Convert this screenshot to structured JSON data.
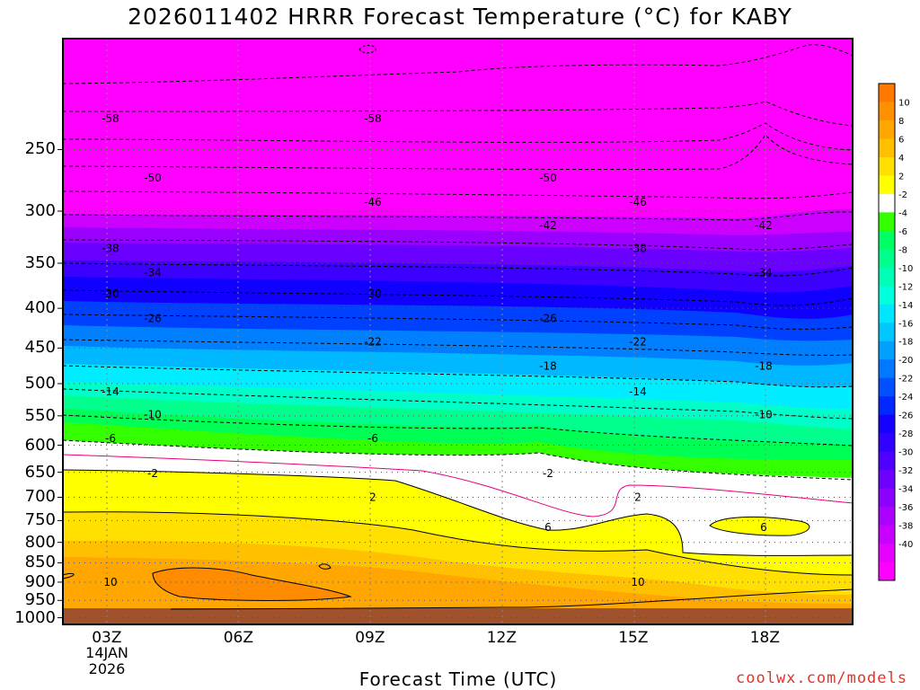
{
  "chart_data": {
    "type": "heatmap",
    "title": "2026011402 HRRR Forecast Temperature (°C) for KABY",
    "xlabel": "Forecast Time (UTC)",
    "ylabel": "",
    "credit": "coolwx.com/models",
    "date_label": [
      "14JAN",
      "2026"
    ],
    "x_ticks": [
      "03Z",
      "06Z",
      "09Z",
      "12Z",
      "15Z",
      "18Z"
    ],
    "y_ticks": [
      250,
      300,
      350,
      400,
      450,
      500,
      550,
      600,
      650,
      700,
      750,
      800,
      850,
      900,
      950,
      1000
    ],
    "xlim_hours": [
      2,
      20
    ],
    "ylim_hpa": [
      1020,
      180
    ],
    "colorbar_ticks": [
      10,
      8,
      6,
      4,
      2,
      -2,
      -4,
      -6,
      -8,
      -10,
      -12,
      -14,
      -16,
      -18,
      -20,
      -22,
      -24,
      -26,
      -28,
      -30,
      -32,
      -34,
      -36,
      -38,
      -40
    ],
    "colorbar_colors": [
      "#ff00ff",
      "#e600ff",
      "#c800ff",
      "#aa00ff",
      "#8c00ff",
      "#6e00ff",
      "#5000ff",
      "#3200ff",
      "#1400ff",
      "#0028ff",
      "#0050ff",
      "#0078ff",
      "#00a0ff",
      "#00c8ff",
      "#00e6ff",
      "#00ffdc",
      "#00ffb4",
      "#00ff8c",
      "#00ff64",
      "#33ff00",
      "#ffffff",
      "#ffff00",
      "#ffe000",
      "#ffc000",
      "#ffa600",
      "#ff9000",
      "#ff7800"
    ],
    "contours": [
      {
        "label": "-58",
        "p": 228
      },
      {
        "label": "-50",
        "p": 272
      },
      {
        "label": "-46",
        "p": 292
      },
      {
        "label": "-42",
        "p": 313
      },
      {
        "label": "-38",
        "p": 335
      },
      {
        "label": "-34",
        "p": 360
      },
      {
        "label": "-30",
        "p": 383
      },
      {
        "label": "-26",
        "p": 412
      },
      {
        "label": "-22",
        "p": 442
      },
      {
        "label": "-18",
        "p": 475
      },
      {
        "label": "-14",
        "p": 512
      },
      {
        "label": "-10",
        "p": 548
      },
      {
        "label": "-6",
        "p": 588
      },
      {
        "label": "-2",
        "p": 652
      },
      {
        "label": "2",
        "p": 700
      },
      {
        "label": "6",
        "p": 765
      },
      {
        "label": "10",
        "p": 900
      }
    ]
  }
}
